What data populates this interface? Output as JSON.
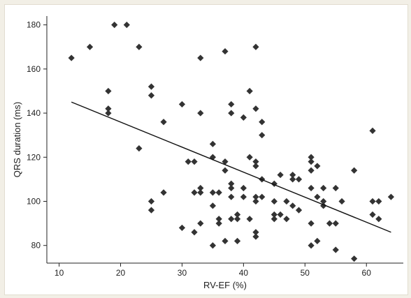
{
  "chart_data": {
    "type": "scatter",
    "xlabel": "RV-EF (%)",
    "ylabel": "QRS duration (ms)",
    "xlim": [
      8,
      66
    ],
    "ylim": [
      72,
      184
    ],
    "xticks": [
      10,
      20,
      30,
      40,
      50,
      60
    ],
    "yticks": [
      80,
      100,
      120,
      140,
      160,
      180
    ],
    "grid": false,
    "marker_color": "#333333",
    "line_color": "#111111",
    "fit_line": {
      "x": [
        12,
        64
      ],
      "y": [
        145,
        86
      ]
    },
    "points": [
      [
        12,
        165
      ],
      [
        15,
        170
      ],
      [
        18,
        150
      ],
      [
        18,
        142
      ],
      [
        18,
        140
      ],
      [
        19,
        180
      ],
      [
        21,
        180
      ],
      [
        23,
        170
      ],
      [
        23,
        124
      ],
      [
        25,
        152
      ],
      [
        25,
        148
      ],
      [
        25,
        100
      ],
      [
        25,
        96
      ],
      [
        27,
        136
      ],
      [
        27,
        104
      ],
      [
        30,
        144
      ],
      [
        30,
        88
      ],
      [
        31,
        118
      ],
      [
        32,
        118
      ],
      [
        32,
        104
      ],
      [
        32,
        86
      ],
      [
        33,
        165
      ],
      [
        33,
        140
      ],
      [
        33,
        106
      ],
      [
        33,
        104
      ],
      [
        33,
        90
      ],
      [
        35,
        126
      ],
      [
        35,
        120
      ],
      [
        35,
        104
      ],
      [
        35,
        98
      ],
      [
        35,
        80
      ],
      [
        36,
        104
      ],
      [
        36,
        92
      ],
      [
        36,
        90
      ],
      [
        37,
        168
      ],
      [
        37,
        118
      ],
      [
        37,
        114
      ],
      [
        37,
        82
      ],
      [
        38,
        144
      ],
      [
        38,
        140
      ],
      [
        38,
        108
      ],
      [
        38,
        106
      ],
      [
        38,
        102
      ],
      [
        38,
        92
      ],
      [
        39,
        94
      ],
      [
        39,
        92
      ],
      [
        39,
        82
      ],
      [
        40,
        138
      ],
      [
        40,
        106
      ],
      [
        40,
        102
      ],
      [
        41,
        150
      ],
      [
        41,
        120
      ],
      [
        41,
        92
      ],
      [
        42,
        170
      ],
      [
        42,
        142
      ],
      [
        42,
        118
      ],
      [
        42,
        116
      ],
      [
        42,
        102
      ],
      [
        42,
        100
      ],
      [
        42,
        86
      ],
      [
        42,
        84
      ],
      [
        43,
        136
      ],
      [
        43,
        130
      ],
      [
        43,
        110
      ],
      [
        43,
        102
      ],
      [
        45,
        108
      ],
      [
        45,
        100
      ],
      [
        45,
        94
      ],
      [
        45,
        92
      ],
      [
        46,
        112
      ],
      [
        46,
        94
      ],
      [
        47,
        100
      ],
      [
        47,
        92
      ],
      [
        48,
        112
      ],
      [
        48,
        110
      ],
      [
        48,
        98
      ],
      [
        49,
        110
      ],
      [
        49,
        96
      ],
      [
        51,
        120
      ],
      [
        51,
        118
      ],
      [
        51,
        114
      ],
      [
        51,
        106
      ],
      [
        51,
        90
      ],
      [
        51,
        80
      ],
      [
        52,
        116
      ],
      [
        52,
        102
      ],
      [
        52,
        82
      ],
      [
        53,
        106
      ],
      [
        53,
        100
      ],
      [
        53,
        98
      ],
      [
        54,
        90
      ],
      [
        55,
        106
      ],
      [
        55,
        90
      ],
      [
        55,
        78
      ],
      [
        56,
        100
      ],
      [
        58,
        114
      ],
      [
        58,
        74
      ],
      [
        61,
        132
      ],
      [
        61,
        100
      ],
      [
        61,
        94
      ],
      [
        62,
        100
      ],
      [
        62,
        92
      ],
      [
        64,
        102
      ]
    ]
  }
}
